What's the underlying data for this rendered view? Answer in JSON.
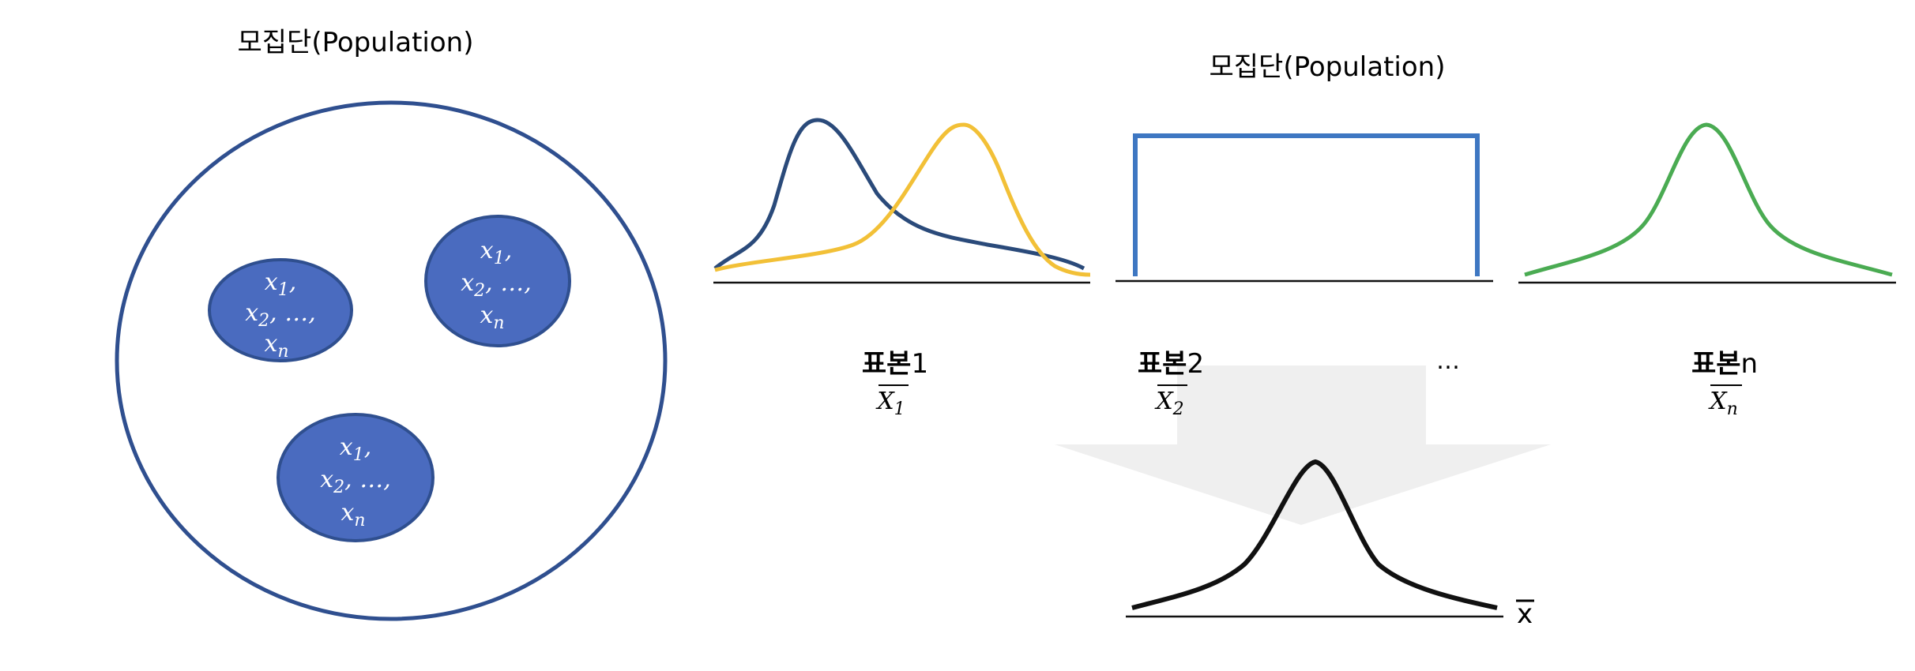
{
  "population_title_left": "모집단(Population)",
  "population_title_right": "모집단(Population)",
  "sample_group": {
    "x1": "x",
    "x1_sub": "1",
    "x2": "x",
    "x2_sub": "2",
    "sep": ",",
    "dots": ", …,",
    "xn": "x",
    "xn_sub": "n"
  },
  "sample_labels": {
    "s1_prefix": "표본",
    "s1_suffix": "1",
    "s2_prefix": "표본",
    "s2_suffix": "2",
    "ellipsis": "…",
    "sn_prefix": "표본",
    "sn_suffix": "n"
  },
  "sample_means": {
    "m1_var": "X",
    "m1_sub": "1",
    "m2_var": "X",
    "m2_sub": "2",
    "mn_var": "X",
    "mn_sub": "n"
  },
  "xbar_axis_label": "x",
  "colors": {
    "ring": "#2f4f8f",
    "blob": "#4a6bbf",
    "navy_curve": "#2a4a7a",
    "yellow_curve": "#f2c037",
    "uniform": "#3e77c2",
    "green_curve": "#4aab52",
    "arrow": "#efefef",
    "black_curve": "#111111"
  }
}
